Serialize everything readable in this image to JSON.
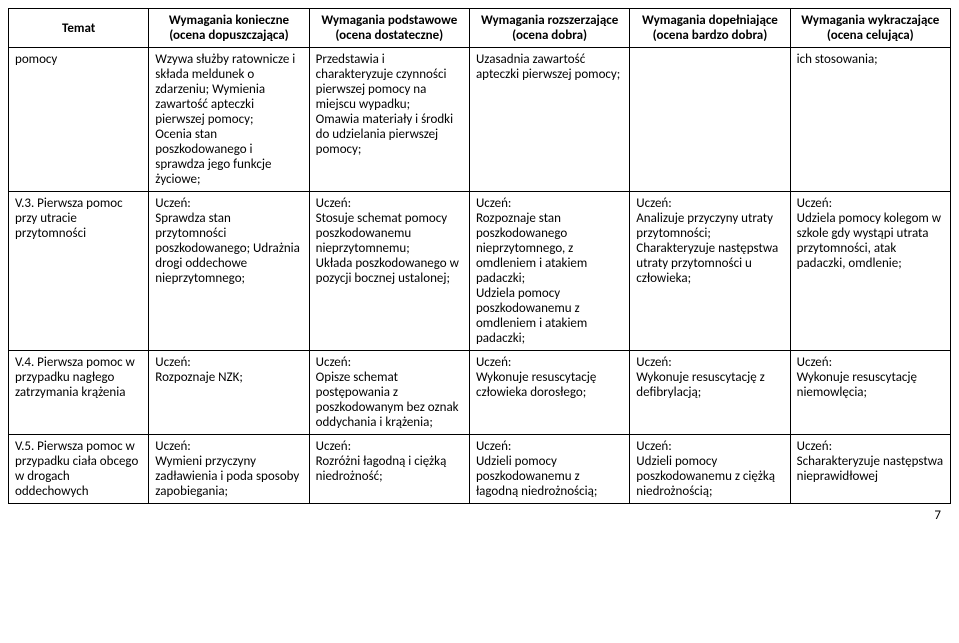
{
  "headers": {
    "c0": "Temat",
    "c1a": "Wymagania konieczne",
    "c1b": "(ocena dopuszczająca)",
    "c2a": "Wymagania podstawowe",
    "c2b": "(ocena dostateczne)",
    "c3a": "Wymagania rozszerzające",
    "c3b": "(ocena dobra)",
    "c4a": "Wymagania dopełniające",
    "c4b": "(ocena bardzo dobra)",
    "c5a": "Wymagania wykraczające",
    "c5b": "(ocena celująca)"
  },
  "rows": [
    {
      "c0": "pomocy",
      "c1": "Wzywa służby ratownicze i składa meldunek o zdarzeniu; Wymienia zawartość apteczki pierwszej pomocy;\nOcenia stan poszkodowanego i sprawdza jego funkcje życiowe;",
      "c2": "Przedstawia i charakteryzuje czynności pierwszej pomocy na miejscu wypadku;\nOmawia materiały i środki do udzielania pierwszej pomocy;",
      "c3": "Uzasadnia zawartość apteczki pierwszej pomocy;",
      "c4": "",
      "c5": "ich stosowania;"
    },
    {
      "c0": "V.3. Pierwsza pomoc przy utracie przytomności",
      "c1": "Uczeń:\nSprawdza stan przytomności poszkodowanego; Udrażnia drogi oddechowe nieprzytomnego;",
      "c2": "Uczeń:\nStosuje schemat pomocy poszkodowanemu nieprzytomnemu;\nUkłada poszkodowanego w pozycji bocznej ustalonej;",
      "c3": "Uczeń:\nRozpoznaje stan poszkodowanego nieprzytomnego, z omdleniem i atakiem padaczki;\nUdziela pomocy poszkodowanemu z omdleniem i atakiem padaczki;",
      "c4": "Uczeń:\nAnalizuje przyczyny utraty przytomności; Charakteryzuje następstwa utraty przytomności u człowieka;",
      "c5": "Uczeń:\nUdziela pomocy kolegom w szkole gdy wystąpi utrata przytomności, atak padaczki, omdlenie;"
    },
    {
      "c0": "V.4. Pierwsza pomoc w przypadku nagłego zatrzymania krążenia",
      "c1": "Uczeń:\nRozpoznaje NZK;",
      "c2": "Uczeń:\nOpisze schemat postępowania z poszkodowanym bez oznak oddychania i krążenia;",
      "c3": "Uczeń:\nWykonuje resuscytację człowieka dorosłego;",
      "c4": "Uczeń:\nWykonuje resuscytację z defibrylacją;",
      "c5": "Uczeń:\nWykonuje resuscytację niemowlęcia;"
    },
    {
      "c0": "V.5. Pierwsza pomoc w przypadku ciała obcego w drogach oddechowych",
      "c1": "Uczeń:\nWymieni przyczyny zadławienia i poda sposoby zapobiegania;",
      "c2": "Uczeń:\nRozróżni łagodną i ciężką niedrożność;",
      "c3": "Uczeń:\nUdzieli pomocy poszkodowanemu z łagodną niedrożnością;",
      "c4": "Uczeń:\nUdzieli pomocy poszkodowanemu z ciężką niedrożnością;",
      "c5": "Uczeń:\nScharakteryzuje następstwa nieprawidłowej"
    }
  ],
  "page_number": "7"
}
